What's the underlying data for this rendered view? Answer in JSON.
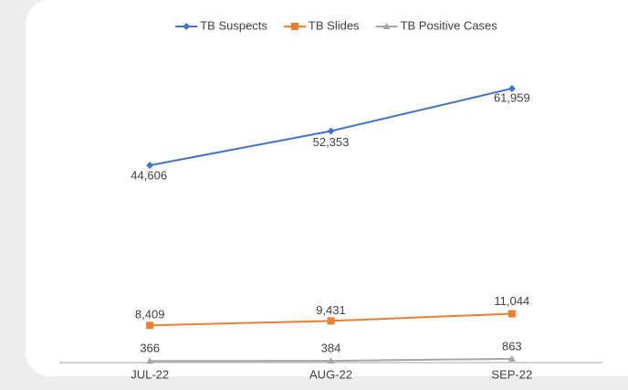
{
  "chart_data": {
    "type": "line",
    "categories": [
      "JUL-22",
      "AUG-22",
      "SEP-22"
    ],
    "series": [
      {
        "name": "TB Suspects",
        "color": "#4472c4",
        "marker": "diamond",
        "values": [
          44606,
          52353,
          61959
        ],
        "value_labels": [
          "44,606",
          "52,353",
          "61,959"
        ]
      },
      {
        "name": "TB Slides",
        "color": "#ed7d31",
        "marker": "square",
        "values": [
          8409,
          9431,
          11044
        ],
        "value_labels": [
          "8,409",
          "9,431",
          "11,044"
        ]
      },
      {
        "name": "TB Positive Cases",
        "color": "#a5a5a5",
        "marker": "triangle",
        "values": [
          366,
          384,
          863
        ]
      }
    ],
    "ylim": [
      0,
      70000
    ],
    "legend": "top"
  }
}
